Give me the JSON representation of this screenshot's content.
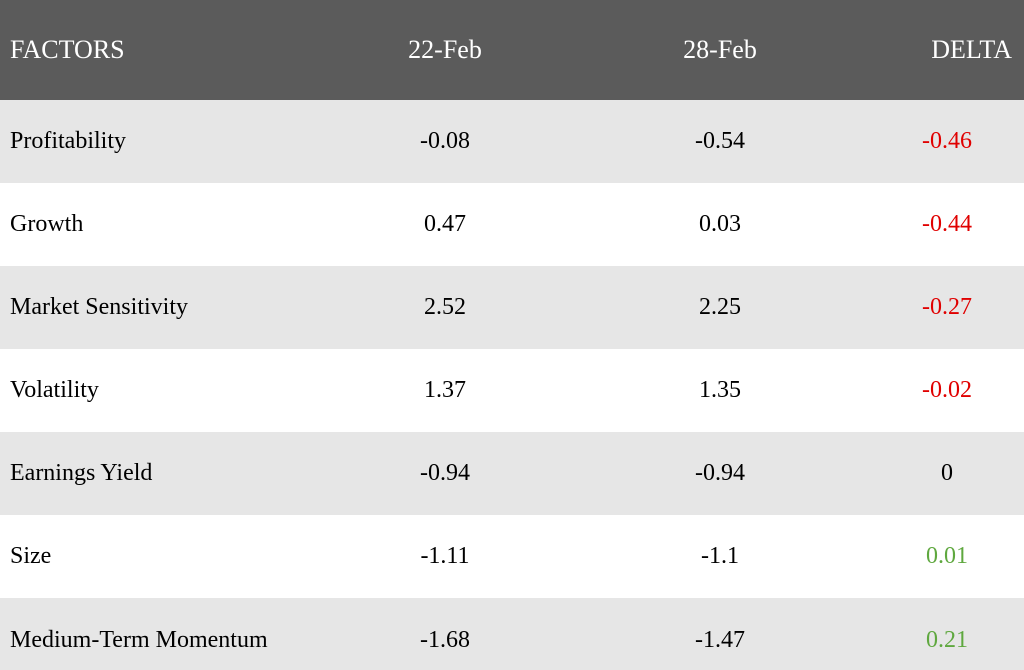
{
  "colors": {
    "header_bg": "#5b5b5b",
    "header_text": "#ffffff",
    "row_alt_bg": "#e6e6e6",
    "row_bg": "#ffffff",
    "negative": "#e00000",
    "positive": "#5fa83f",
    "neutral": "#000000"
  },
  "header": {
    "factors": "FACTORS",
    "feb22": "22-Feb",
    "feb28": "28-Feb",
    "delta": "DELTA"
  },
  "rows": [
    {
      "factor": "Profitability",
      "feb22": "-0.08",
      "feb28": "-0.54",
      "delta": "-0.46",
      "sign": "negative"
    },
    {
      "factor": "Growth",
      "feb22": "0.47",
      "feb28": "0.03",
      "delta": "-0.44",
      "sign": "negative"
    },
    {
      "factor": "Market Sensitivity",
      "feb22": "2.52",
      "feb28": "2.25",
      "delta": "-0.27",
      "sign": "negative"
    },
    {
      "factor": "Volatility",
      "feb22": "1.37",
      "feb28": "1.35",
      "delta": "-0.02",
      "sign": "negative"
    },
    {
      "factor": "Earnings Yield",
      "feb22": "-0.94",
      "feb28": "-0.94",
      "delta": "0",
      "sign": "neutral"
    },
    {
      "factor": "Size",
      "feb22": "-1.11",
      "feb28": "-1.1",
      "delta": "0.01",
      "sign": "positive"
    },
    {
      "factor": "Medium-Term Momentum",
      "feb22": "-1.68",
      "feb28": "-1.47",
      "delta": "0.21",
      "sign": "positive"
    }
  ]
}
